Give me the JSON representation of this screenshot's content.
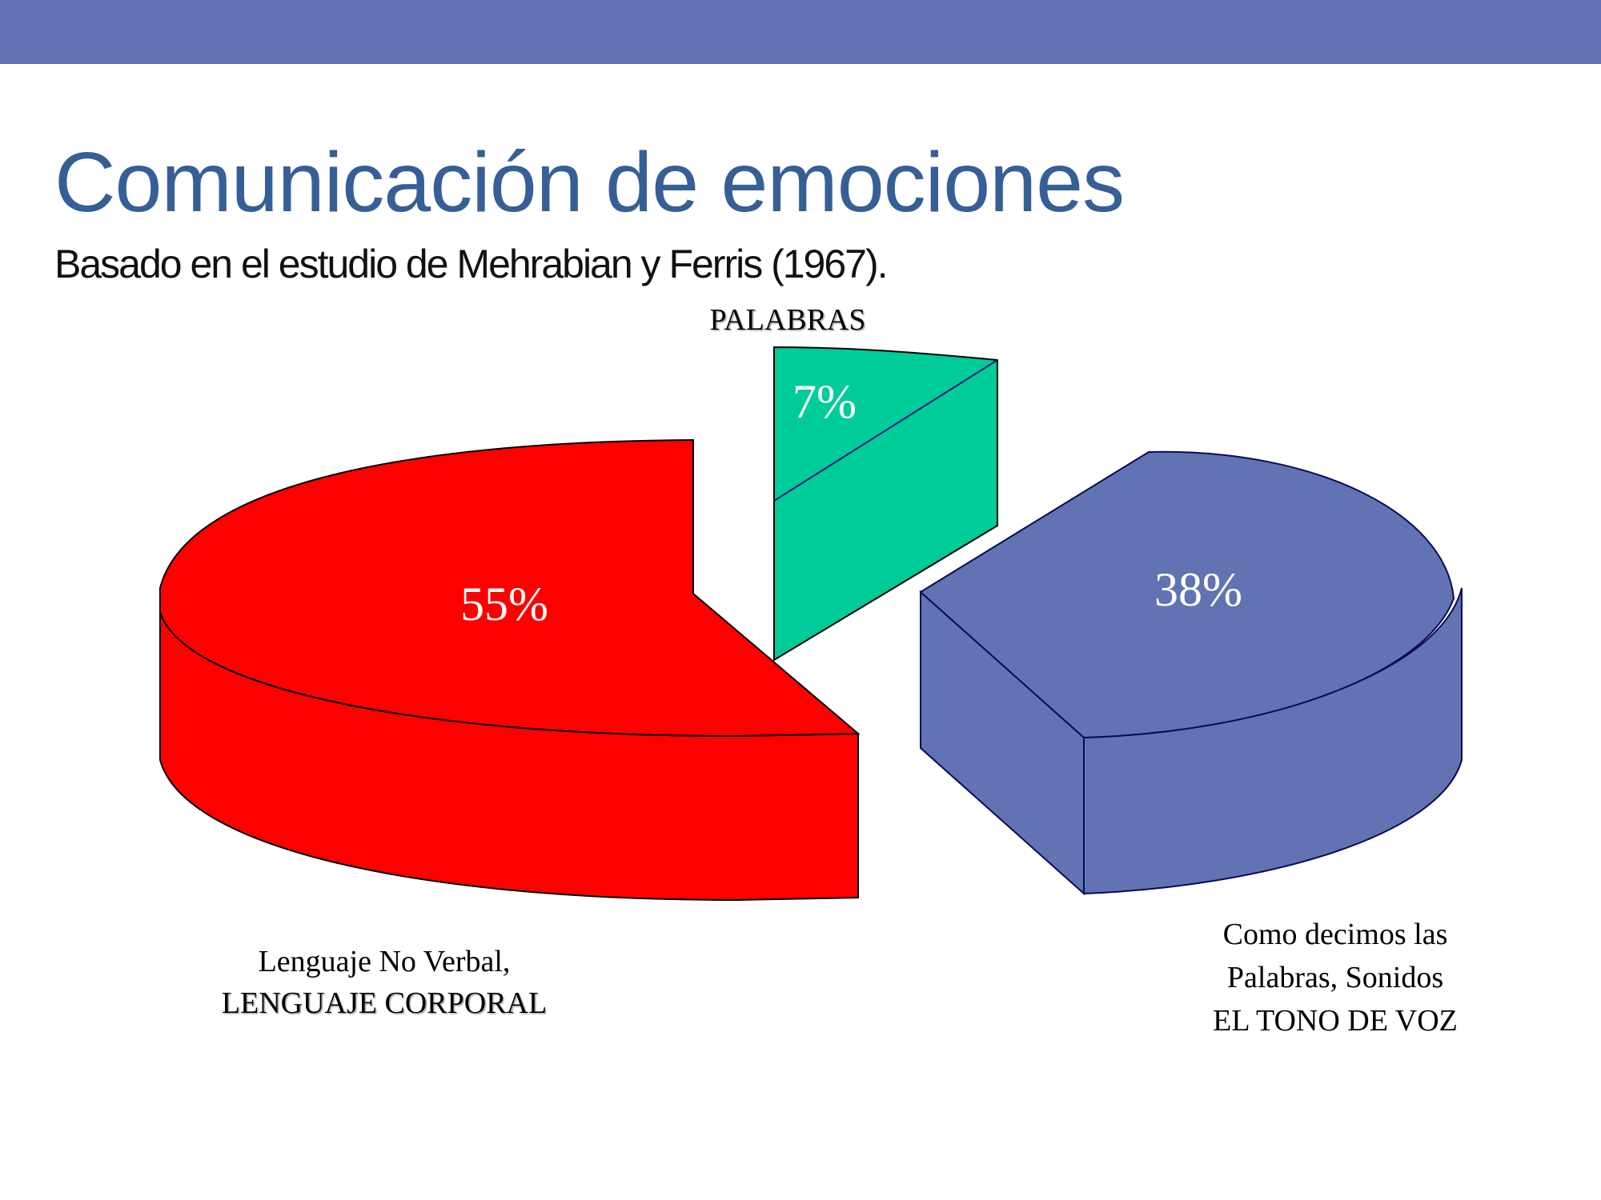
{
  "slide": {
    "title": "Comunicación de emociones",
    "subtitle": "Basado en el estudio de Mehrabian y Ferris (1967).",
    "accent_color": "#6173b3",
    "title_color": "#365f97"
  },
  "chart_data": {
    "type": "pie",
    "title": "",
    "categories": [
      "Lenguaje No Verbal, LENGUAJE CORPORAL",
      "PALABRAS",
      "Como decimos las Palabras, Sonidos EL TONO DE VOZ"
    ],
    "values": [
      55,
      7,
      38
    ],
    "value_labels": [
      "55%",
      "7%",
      "38%"
    ],
    "colors": [
      "#ff0000",
      "#00cc99",
      "#6173b3"
    ],
    "slices": [
      {
        "value": 55,
        "value_label": "55%",
        "color": "#ff0000",
        "label_lines": [
          "Lenguaje No Verbal,",
          "LENGUAJE CORPORAL"
        ]
      },
      {
        "value": 7,
        "value_label": "7%",
        "color": "#00cc99",
        "label_lines": [
          "PALABRAS"
        ]
      },
      {
        "value": 38,
        "value_label": "38%",
        "color": "#6173b3",
        "label_lines": [
          "Como decimos las",
          "Palabras, Sonidos",
          "EL TONO DE VOZ"
        ]
      }
    ],
    "style": "3d-exploded"
  }
}
